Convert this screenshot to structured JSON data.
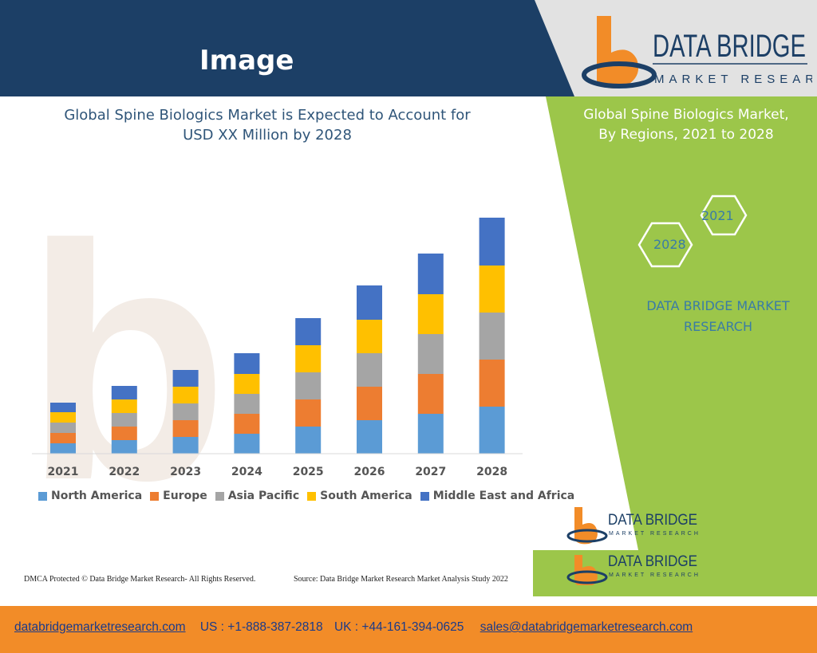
{
  "header": {
    "title": "Image"
  },
  "logo": {
    "main": "DATA BRIDGE",
    "sub": "MARKET RESEARCH"
  },
  "chart_title_lines": [
    "Global Spine Biologics Market is Expected to Account for",
    "USD XX Million by 2028"
  ],
  "right_title_lines": [
    "Global Spine Biologics Market,",
    "By Regions, 2021 to 2028"
  ],
  "hexagons": {
    "top": "2021",
    "bottom": "2028"
  },
  "right_brand_lines": [
    "DATA BRIDGE MARKET",
    "RESEARCH"
  ],
  "footnotes": {
    "left": "DMCA Protected © Data Bridge Market Research- All Rights Reserved.",
    "right": "Source: Data Bridge Market Research Market Analysis Study 2022"
  },
  "footer": {
    "website": "databridgemarketresearch.com",
    "us": "US : +1-888-387-2818",
    "uk": "UK : +44-161-394-0625",
    "email": "sales@databridgemarketresearch.com"
  },
  "colors": {
    "header_blue": "#1c3f66",
    "green": "#9cc64a",
    "footer_orange": "#f28c28",
    "north_america": "#5b9bd5",
    "europe": "#ed7d31",
    "asia_pacific": "#a5a5a5",
    "south_america": "#ffc000",
    "middle_east_africa": "#4472c4"
  },
  "chart_data": {
    "type": "bar",
    "stacked": true,
    "categories": [
      "2021",
      "2022",
      "2023",
      "2024",
      "2025",
      "2026",
      "2027",
      "2028"
    ],
    "series": [
      {
        "name": "North America",
        "color": "#5b9bd5",
        "values": [
          13,
          17,
          21,
          25,
          34,
          42,
          50,
          59
        ]
      },
      {
        "name": "Europe",
        "color": "#ed7d31",
        "values": [
          13,
          17,
          21,
          25,
          34,
          42,
          50,
          59
        ]
      },
      {
        "name": "Asia Pacific",
        "color": "#a5a5a5",
        "values": [
          13,
          17,
          21,
          25,
          34,
          42,
          50,
          59
        ]
      },
      {
        "name": "South America",
        "color": "#ffc000",
        "values": [
          13,
          17,
          21,
          25,
          34,
          42,
          50,
          59
        ]
      },
      {
        "name": "Middle East and Africa",
        "color": "#4472c4",
        "values": [
          12,
          17,
          21,
          26,
          34,
          43,
          51,
          60
        ]
      }
    ],
    "ylim": [
      0,
      300
    ],
    "grid": false,
    "legend": "bottom"
  }
}
